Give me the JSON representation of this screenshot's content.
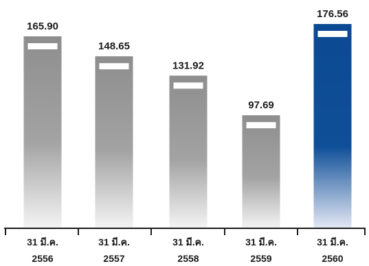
{
  "chart_data": {
    "type": "bar",
    "categories": [
      {
        "line1": "31 มี.ค.",
        "line2": "2556"
      },
      {
        "line1": "31 มี.ค.",
        "line2": "2557"
      },
      {
        "line1": "31 มี.ค.",
        "line2": "2558"
      },
      {
        "line1": "31 มี.ค.",
        "line2": "2559"
      },
      {
        "line1": "31 มี.ค.",
        "line2": "2560"
      }
    ],
    "values": [
      165.9,
      148.65,
      131.92,
      97.69,
      176.56
    ],
    "value_labels": [
      "165.90",
      "148.65",
      "131.92",
      "97.69",
      "176.56"
    ],
    "highlight_index": 4,
    "ylim": [
      0,
      176.56
    ],
    "grid": false,
    "legend": "none",
    "colors": {
      "bar": "#8f8f8f",
      "bar_highlight": "#0b4a93",
      "axis": "#1a1a1a",
      "marker": "#ffffff"
    }
  }
}
